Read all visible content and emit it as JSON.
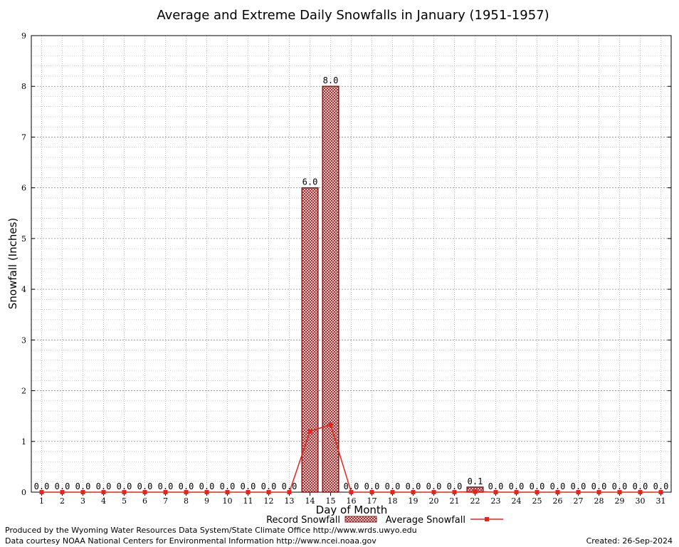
{
  "chart_data": {
    "type": "bar",
    "title": "Average and Extreme Daily Snowfalls in January (1951-1957)",
    "xlabel": "Day of Month",
    "ylabel": "Snowfall (Inches)",
    "ylim": [
      0,
      9
    ],
    "yticks": [
      "0",
      "1",
      "2",
      "3",
      "4",
      "5",
      "6",
      "7",
      "8",
      "9"
    ],
    "categories": [
      "1",
      "2",
      "3",
      "4",
      "5",
      "6",
      "7",
      "8",
      "9",
      "10",
      "11",
      "12",
      "13",
      "14",
      "15",
      "16",
      "17",
      "18",
      "19",
      "20",
      "21",
      "22",
      "23",
      "24",
      "25",
      "26",
      "27",
      "28",
      "29",
      "30",
      "31"
    ],
    "series": [
      {
        "name": "Record Snowfall",
        "kind": "bar",
        "color": "#8b1a1a",
        "values": [
          0,
          0,
          0,
          0,
          0,
          0,
          0,
          0,
          0,
          0,
          0,
          0,
          0,
          6.0,
          8.0,
          0,
          0,
          0,
          0,
          0,
          0,
          0.1,
          0,
          0,
          0,
          0,
          0,
          0,
          0,
          0,
          0
        ],
        "labels": [
          "0.0",
          "0.0",
          "0.0",
          "0.0",
          "0.0",
          "0.0",
          "0.0",
          "0.0",
          "0.0",
          "0.0",
          "0.0",
          "0.0",
          "0.0",
          "6.0",
          "8.0",
          "0.0",
          "0.0",
          "0.0",
          "0.0",
          "0.0",
          "0.0",
          "0.1",
          "0.0",
          "0.0",
          "0.0",
          "0.0",
          "0.0",
          "0.0",
          "0.0",
          "0.0",
          "0.0"
        ]
      },
      {
        "name": "Average Snowfall",
        "kind": "line",
        "color": "#e8231e",
        "values": [
          0,
          0,
          0,
          0,
          0,
          0,
          0,
          0,
          0,
          0,
          0,
          0,
          0,
          1.2,
          1.33,
          0,
          0,
          0,
          0,
          0,
          0,
          0.01,
          0,
          0,
          0,
          0,
          0,
          0,
          0,
          0,
          0
        ]
      }
    ],
    "grid": true,
    "legend_position": "bottom"
  },
  "footer": {
    "produced_by": "Produced by the Wyoming Water Resources Data System/State Climate Office http://www.wrds.uwyo.edu",
    "data_courtesy": "Data courtesy NOAA National Centers for Environmental Information http://www.ncei.noaa.gov",
    "created": "Created:  26-Sep-2024"
  }
}
